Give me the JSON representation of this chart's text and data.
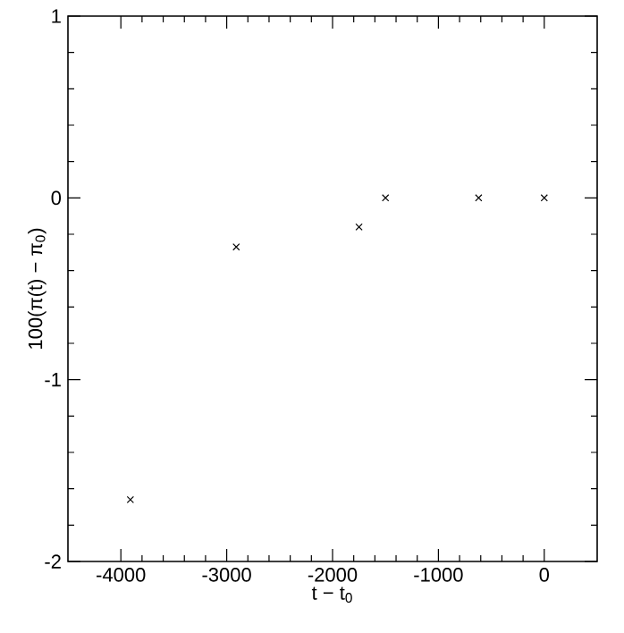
{
  "chart_data": {
    "type": "scatter",
    "xlabel": "t − t$_{0}$",
    "ylabel": "100(π(t) − π$_{0}$)",
    "x": [
      -3910,
      -2910,
      -1750,
      -1500,
      -620,
      0
    ],
    "values": [
      -1.66,
      -0.27,
      -0.16,
      0,
      0,
      0
    ],
    "color": "#000000",
    "marker": "cross",
    "xlim": [
      -4500,
      500
    ],
    "ylim": [
      -2,
      1
    ],
    "xticks": [
      -4000,
      -3000,
      -2000,
      -1000,
      0
    ],
    "yticks": [
      -2,
      -1,
      0,
      1
    ]
  }
}
